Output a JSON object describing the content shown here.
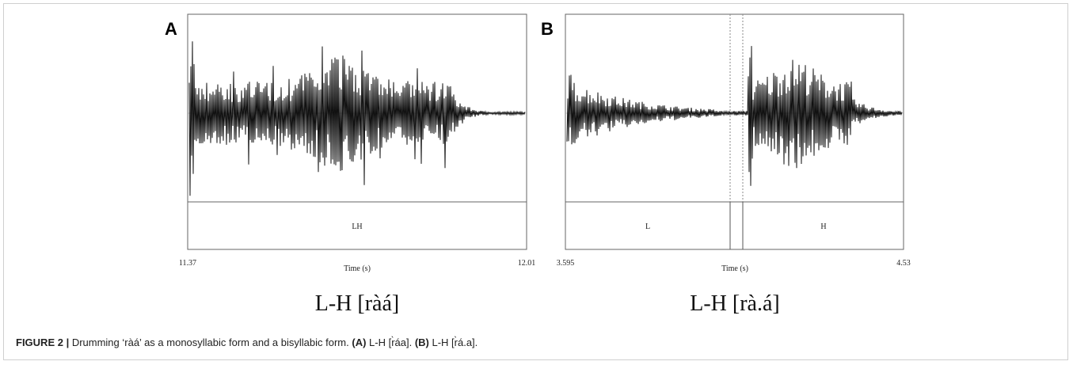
{
  "figure": {
    "panels": [
      {
        "label": "A",
        "tiers": [
          "LH"
        ],
        "time_start": "11.37",
        "time_end": "12.01",
        "axis_label": "Time (s)",
        "transcription": "L-H [ràá]"
      },
      {
        "label": "B",
        "tiers": [
          "L",
          "H"
        ],
        "time_start": "3.595",
        "time_end": "4.53",
        "axis_label": "Time (s)",
        "transcription": "L-H [rà.á]"
      }
    ],
    "caption": {
      "number": "FIGURE 2 |",
      "text": " Drumming ‘ràá’ as a monosyllabic form and a bisyllabic form. ",
      "a_label": "(A)",
      "a_text": " L-H [r̀áa]. ",
      "b_label": "(B)",
      "b_text": " L-H [r̀á.a]."
    }
  }
}
